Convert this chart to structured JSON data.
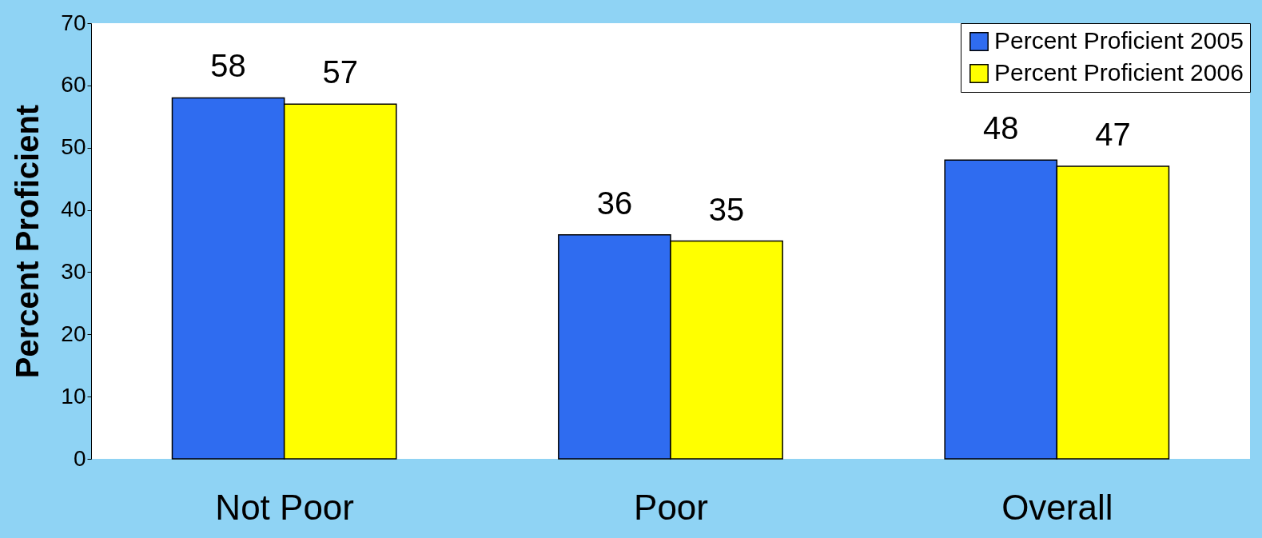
{
  "chart_data": {
    "type": "bar",
    "ylabel": "Percent Proficient",
    "categories": [
      "Not Poor",
      "Poor",
      "Overall"
    ],
    "series": [
      {
        "name": "Percent Proficient 2005",
        "color": "#2f6cf0",
        "values": [
          58,
          36,
          48
        ]
      },
      {
        "name": "Percent Proficient 2006",
        "color": "#ffff00",
        "values": [
          57,
          35,
          47
        ]
      }
    ],
    "ylim": [
      0,
      70
    ],
    "yticks": [
      0,
      10,
      20,
      30,
      40,
      50,
      60,
      70
    ],
    "data_labels": true,
    "legend": "top right",
    "grid": false
  }
}
